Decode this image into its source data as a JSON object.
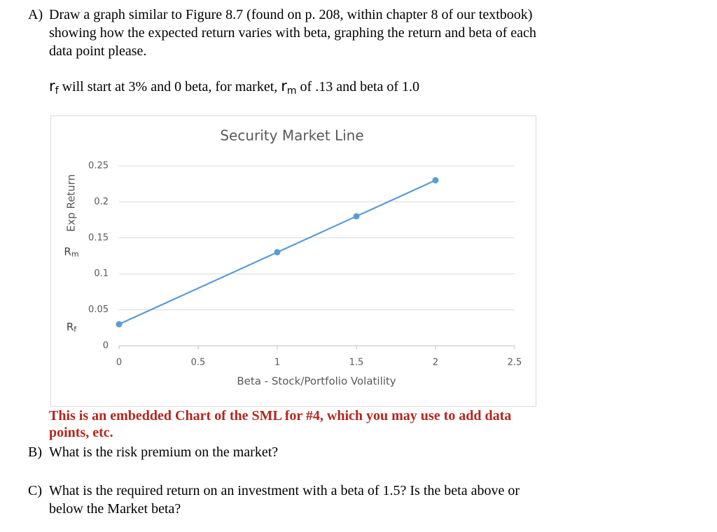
{
  "question_a": {
    "label": "A)",
    "lines": [
      "Draw a graph similar to Figure 8.7 (found on p. 208, within chapter 8 of our textbook)",
      "showing how the expected return varies with beta, graphing the return and beta of each",
      "data point please."
    ]
  },
  "rates": {
    "rf_symbol": "r",
    "rf_sub": "f",
    "text1": " will start at 3% and 0 beta, for market, ",
    "rm_symbol": "r",
    "rm_sub": "m",
    "text2": " of .13 and beta of 1.0"
  },
  "chart_data": {
    "type": "line",
    "title": "Security Market Line",
    "x_label": "Beta - Stock/Portfolio Volatility",
    "y_label": "Exp Return",
    "x": [
      0,
      1,
      1.5,
      2
    ],
    "series": [
      {
        "color": "#5b9bd5",
        "values": [
          0.03,
          0.13,
          0.18,
          0.23
        ]
      }
    ],
    "annotations": [
      {
        "text": "R",
        "sub": "m"
      },
      {
        "text": "R",
        "sub": "f"
      }
    ],
    "xlim": [
      0,
      2.5
    ],
    "xticks": [
      0,
      0.5,
      1,
      1.5,
      2,
      2.5
    ],
    "ylim": [
      0,
      0.25
    ],
    "yticks": [
      0,
      0.05,
      0.1,
      0.15,
      0.2,
      0.25
    ],
    "grid": true
  },
  "note": {
    "lines": [
      "This is an embedded Chart of the SML for #4, which you may use to add data",
      "points, etc."
    ]
  },
  "question_b": {
    "label": "B)",
    "lines": [
      "What is the risk premium on the market?"
    ]
  },
  "question_c": {
    "label": "C)",
    "lines": [
      "What is the required return on an investment with a beta of 1.5? Is the beta above or",
      "below the Market beta?"
    ]
  }
}
